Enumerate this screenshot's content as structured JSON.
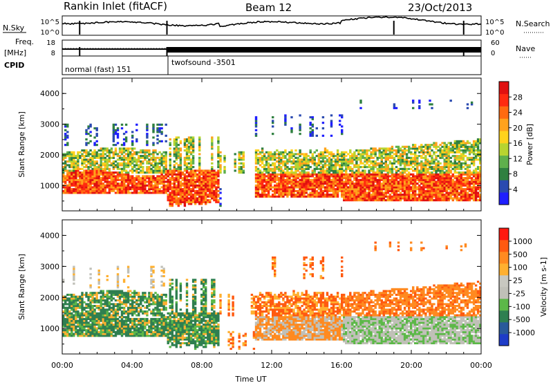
{
  "header": {
    "station": "Rankin Inlet (fitACF)",
    "beam": "Beam 12",
    "date": "23/Oct/2013"
  },
  "top_panels": {
    "nsky_label": "N.Sky",
    "nsky_ticks": [
      "10^5",
      "10^0"
    ],
    "nsearch_label": "N.Search",
    "nsearch_ticks": [
      "10^5",
      "10^0"
    ],
    "freq_label": "Freq.",
    "freq_unit": "[MHz]",
    "freq_ticks": [
      "18",
      "8"
    ],
    "nave_label": "Nave",
    "nave_ticks": [
      "60",
      "0"
    ],
    "cpid_label": "CPID",
    "modes": [
      {
        "name": "normal (fast) 151",
        "start_hour": 0,
        "end_hour": 6.0
      },
      {
        "name": "twofsound -3501",
        "start_hour": 6.0,
        "end_hour": 24.0
      }
    ]
  },
  "chart_data": [
    {
      "type": "heatmap",
      "title": "",
      "quantity": "Power",
      "colorbar_label": "Power [dB]",
      "colorbar_ticks": [
        "28",
        "24",
        "20",
        "16",
        "12",
        "8",
        "4"
      ],
      "colorbar_range": [
        0,
        32
      ],
      "colors": [
        "#1f1fff",
        "#2a4ab0",
        "#2f8040",
        "#5fb04c",
        "#b8d430",
        "#ffd21c",
        "#ffa21c",
        "#ff6a10",
        "#ff2a10",
        "#e01010"
      ],
      "xlabel": "",
      "ylabel": "Slant Range [km]",
      "xlim": [
        0,
        24
      ],
      "ylim": [
        180,
        4500
      ],
      "yticks": [
        1000,
        2000,
        3000,
        4000
      ],
      "grid": false
    },
    {
      "type": "heatmap",
      "title": "",
      "quantity": "Velocity",
      "colorbar_label": "Velocity [m s-1]",
      "colorbar_ticks": [
        "1000",
        "500",
        "100",
        "25",
        "-25",
        "-100",
        "-500",
        "-1000"
      ],
      "colorbar_range": [
        -1200,
        1200
      ],
      "colors": [
        "#1e3cc8",
        "#2a5a9a",
        "#2f7f50",
        "#5cb848",
        "#c0c0b8",
        "#c8c8c0",
        "#ffb030",
        "#ff8a20",
        "#ff5a10",
        "#ff1a10"
      ],
      "xlabel": "Time UT",
      "ylabel": "Slant Range [km]",
      "xlim": [
        0,
        24
      ],
      "ylim": [
        180,
        4500
      ],
      "xticks": [
        "00:00",
        "04:00",
        "08:00",
        "12:00",
        "16:00",
        "20:00",
        "00:00"
      ],
      "yticks": [
        1000,
        2000,
        3000,
        4000
      ],
      "grid": false
    }
  ]
}
